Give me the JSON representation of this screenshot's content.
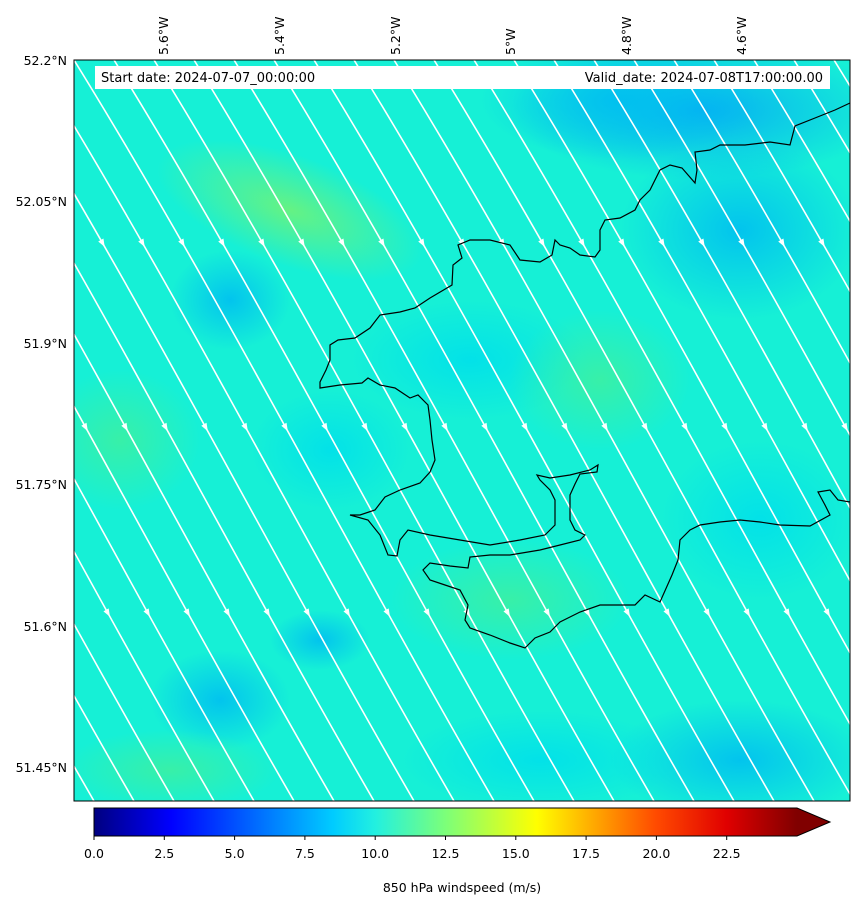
{
  "header": {
    "start_date": "Start date: 2024-07-07_00:00:00",
    "valid_date": "Valid_date: 2024-07-08T17:00:00.00"
  },
  "map": {
    "lon_labels": [
      "5.6°W",
      "5.4°W",
      "5.2°W",
      "5°W",
      "4.8°W",
      "4.6°W"
    ],
    "lat_labels": [
      "52.2°N",
      "52.05°N",
      "51.9°N",
      "51.75°N",
      "51.6°N",
      "51.45°N"
    ],
    "lon_range": [
      -5.74,
      -4.46
    ],
    "lat_range": [
      51.42,
      52.2
    ],
    "background_color": "#16f0d6",
    "streamline_color": "#ffffff",
    "coastline_color": "#000000"
  },
  "colorbar": {
    "label": "850 hPa windspeed (m/s)",
    "ticks": [
      "0.0",
      "2.5",
      "5.0",
      "7.5",
      "10.0",
      "12.5",
      "15.0",
      "17.5",
      "20.0",
      "22.5"
    ],
    "range": [
      0,
      25
    ],
    "colormap": "jet",
    "extend": "max"
  }
}
